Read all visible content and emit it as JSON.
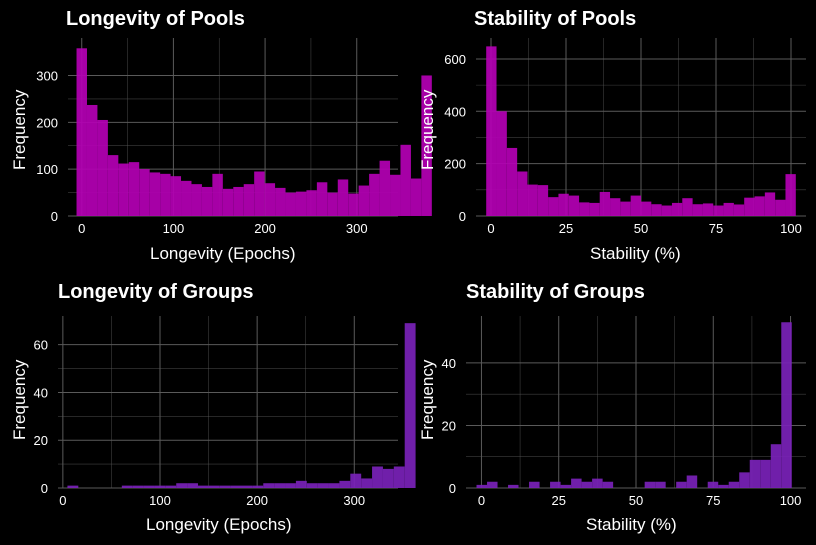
{
  "colors": {
    "pools": "#b400b4",
    "groups": "#7a22b8",
    "grid": "#5a5a5a",
    "tick": "#ffffff",
    "background": "#000000"
  },
  "chart_data": [
    {
      "type": "bar",
      "title": "Longevity of Pools",
      "xlabel": "Longevity (Epochs)",
      "ylabel": "Frequency",
      "xlim": [
        -15,
        345
      ],
      "ylim": [
        0,
        380
      ],
      "xticks": [
        0,
        100,
        200,
        300
      ],
      "yticks": [
        0,
        100,
        200,
        300
      ],
      "grid": true,
      "bin_start": -5.7,
      "bin_width": 11.4,
      "values": [
        358,
        237,
        205,
        130,
        112,
        115,
        100,
        93,
        90,
        85,
        75,
        68,
        62,
        90,
        58,
        62,
        68,
        95,
        70,
        60,
        50,
        52,
        55,
        72,
        50,
        78,
        48,
        65,
        90,
        118,
        88,
        152,
        80,
        300
      ]
    },
    {
      "type": "bar",
      "title": "Stability of Pools",
      "xlabel": "Stability (%)",
      "ylabel": "Frequency",
      "xlim": [
        -5,
        105
      ],
      "ylim": [
        0,
        680
      ],
      "xticks": [
        0,
        25,
        50,
        75,
        100
      ],
      "yticks": [
        0,
        200,
        400,
        600
      ],
      "grid": true,
      "bin_start": -1.6,
      "bin_width": 3.44,
      "values": [
        648,
        400,
        260,
        170,
        120,
        118,
        72,
        85,
        78,
        52,
        50,
        92,
        68,
        55,
        78,
        55,
        45,
        40,
        50,
        68,
        45,
        48,
        40,
        50,
        44,
        70,
        75,
        90,
        62,
        160
      ]
    },
    {
      "type": "bar",
      "title": "Longevity of Groups",
      "xlabel": "Longevity (Epochs)",
      "ylabel": "Frequency",
      "xlim": [
        -5,
        345
      ],
      "ylim": [
        0,
        72
      ],
      "xticks": [
        0,
        100,
        200,
        300
      ],
      "yticks": [
        0,
        20,
        40,
        60
      ],
      "grid": true,
      "bin_start": 4.7,
      "bin_width": 11.2,
      "values": [
        1,
        0,
        0,
        0,
        0,
        1,
        1,
        1,
        1,
        1,
        2,
        2,
        1,
        1,
        1,
        1,
        1,
        1,
        2,
        2,
        2,
        3,
        2,
        2,
        2,
        3,
        6,
        4,
        9,
        8,
        9,
        69
      ]
    },
    {
      "type": "bar",
      "title": "Stability of Groups",
      "xlabel": "Stability (%)",
      "ylabel": "Frequency",
      "xlim": [
        -5,
        105
      ],
      "ylim": [
        0,
        55
      ],
      "xticks": [
        0,
        25,
        50,
        75,
        100
      ],
      "yticks": [
        0,
        20,
        40
      ],
      "grid": true,
      "bin_start": -1.6,
      "bin_width": 3.4,
      "values": [
        1,
        2,
        0,
        1,
        0,
        2,
        0,
        2,
        1,
        3,
        2,
        3,
        2,
        0,
        0,
        0,
        2,
        2,
        0,
        2,
        4,
        0,
        2,
        1,
        2,
        5,
        9,
        9,
        14,
        53
      ]
    }
  ]
}
